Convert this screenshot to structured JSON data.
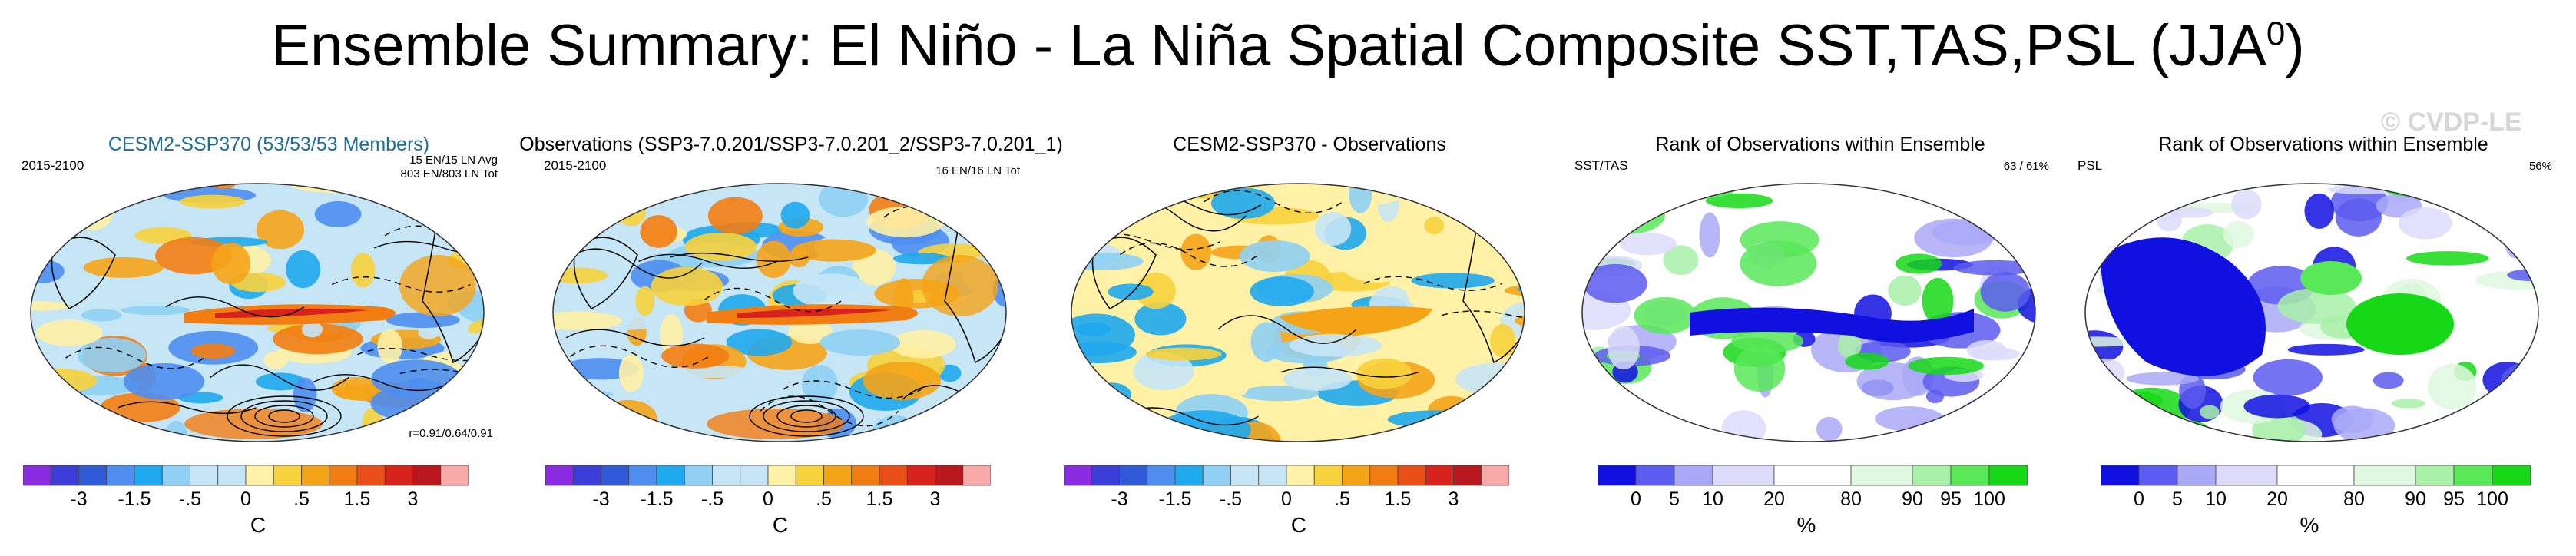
{
  "title": "Ensemble Summary: El Niño - La Niña Spatial Composite SST,TAS,PSL (JJA",
  "title_sup": "0",
  "title_close": ")",
  "watermark": "© CVDP-LE",
  "colors": {
    "diverging": [
      "#8a2be2",
      "#3c3cd9",
      "#2f5bd9",
      "#4d8ef0",
      "#1fa9ee",
      "#8fd0f4",
      "#c6e6f6",
      "#fff1a6",
      "#f7d23c",
      "#f5a418",
      "#f27d12",
      "#ea4f18",
      "#d8231d",
      "#b8171d",
      "#f7a8a8"
    ],
    "rank": [
      "#1010e0",
      "#5c5cf0",
      "#a9a9f7",
      "#dcdcfa",
      "#ffffff",
      "#dff8df",
      "#a8f0a8",
      "#58e858",
      "#16d816"
    ]
  },
  "chart_data": [
    {
      "type": "heatmap",
      "title": "CESM2-SSP370 (53/53/53 Members)",
      "period": "2015-2100",
      "count_lines": [
        "15 EN/15 LN Avg",
        "803 EN/803 LN Tot"
      ],
      "correlation": "r=0.91/0.64/0.91",
      "colorbar_ticks": [
        "-3",
        "-1.5",
        "-.5",
        "0",
        ".5",
        "1.5",
        "3"
      ],
      "units": "C",
      "colorbar_levels": [
        -4,
        -3,
        -2.5,
        -2,
        -1.5,
        -1,
        -0.5,
        -0.25,
        0,
        0.25,
        0.5,
        1,
        1.5,
        2,
        2.5,
        3,
        4
      ]
    },
    {
      "type": "heatmap",
      "title": "Observations (SSP3-7.0.201/SSP3-7.0.201_2/SSP3-7.0.201_1)",
      "period": "2015-2100",
      "count_lines": [
        "16 EN/16 LN Tot"
      ],
      "colorbar_ticks": [
        "-3",
        "-1.5",
        "-.5",
        "0",
        ".5",
        "1.5",
        "3"
      ],
      "units": "C"
    },
    {
      "type": "heatmap",
      "title": "CESM2-SSP370 - Observations",
      "colorbar_ticks": [
        "-3",
        "-1.5",
        "-.5",
        "0",
        ".5",
        "1.5",
        "3"
      ],
      "units": "C"
    },
    {
      "type": "heatmap",
      "title": "Rank of Observations within Ensemble",
      "variable": "SST/TAS",
      "rank_stat": "63 /  61%",
      "colorbar_ticks": [
        "0",
        "5",
        "10",
        "20",
        "80",
        "90",
        "95",
        "100"
      ],
      "units": "%"
    },
    {
      "type": "heatmap",
      "title": "Rank of Observations within Ensemble",
      "variable": "PSL",
      "rank_stat": "56%",
      "colorbar_ticks": [
        "0",
        "5",
        "10",
        "20",
        "80",
        "90",
        "95",
        "100"
      ],
      "units": "%"
    }
  ]
}
